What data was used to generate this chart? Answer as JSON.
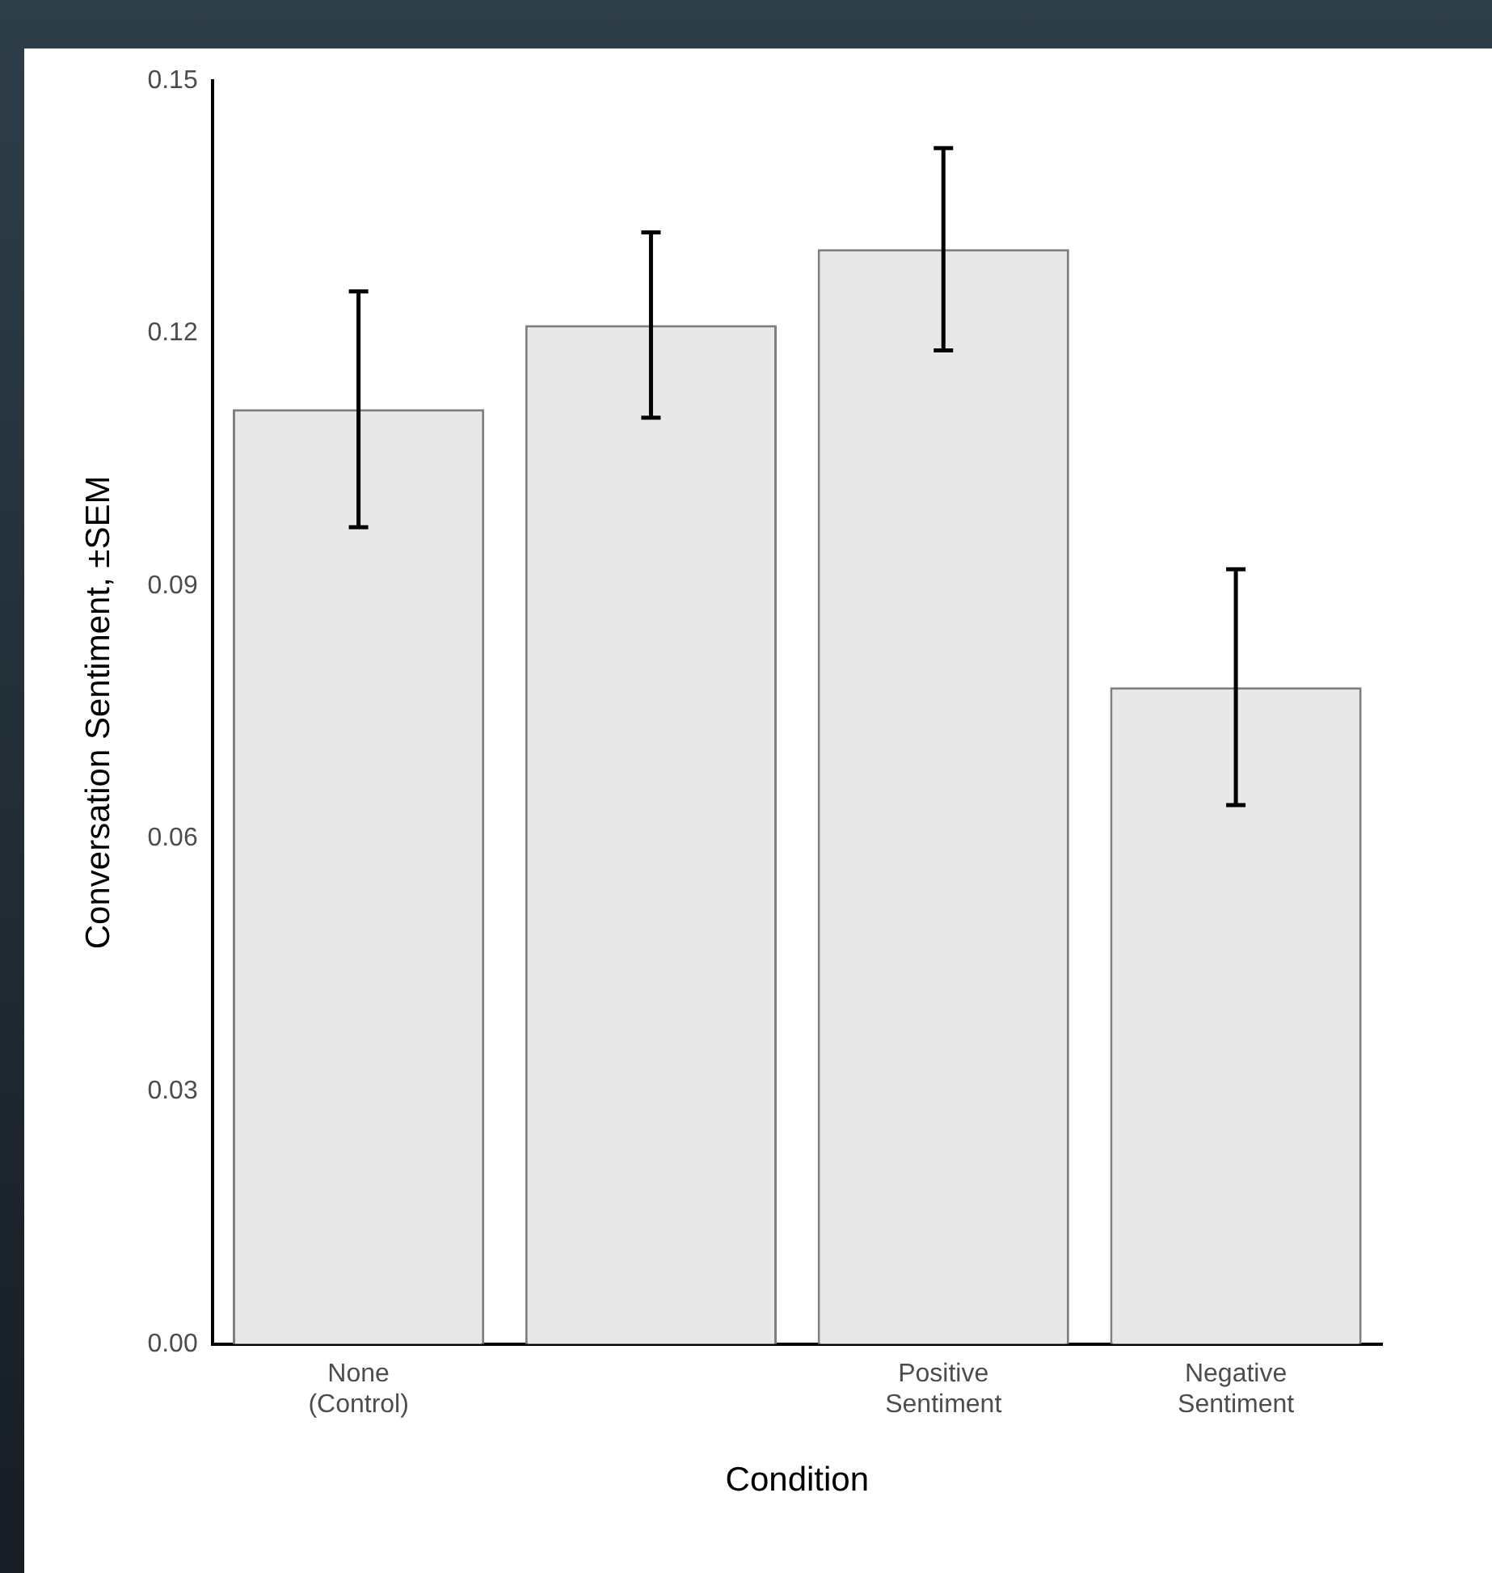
{
  "chart_data": {
    "type": "bar",
    "ylabel": "Conversation Sentiment, ±SEM",
    "xlabel": "Condition",
    "categories": [
      "None (Control)",
      null,
      "Positive Sentiment",
      "Negative Sentiment"
    ],
    "values": [
      0.111,
      0.121,
      0.13,
      0.078
    ],
    "errors": [
      0.014,
      0.011,
      0.012,
      0.014
    ],
    "color": "#e8e8e8",
    "ylim": [
      0,
      0.15
    ],
    "yticks": [
      {
        "value": 0,
        "label": "0.00"
      },
      {
        "value": 0.03,
        "label": "0.03"
      },
      {
        "value": 0.06,
        "label": "0.06"
      },
      {
        "value": 0.09,
        "label": "0.09"
      },
      {
        "value": 0.12,
        "label": "0.12"
      },
      {
        "value": 0.15,
        "label": "0.15"
      }
    ],
    "grid": false,
    "legend": false
  }
}
